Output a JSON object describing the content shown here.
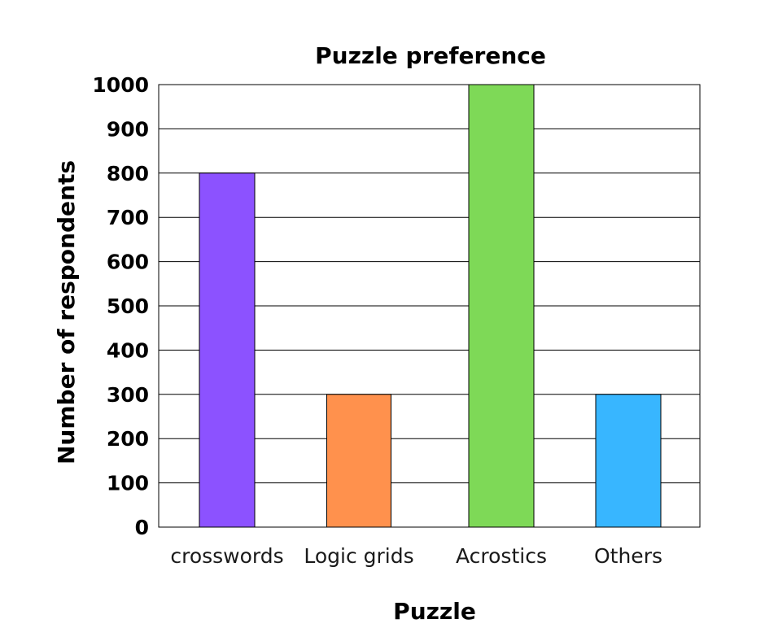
{
  "chart_data": {
    "type": "bar",
    "title": "Puzzle preference",
    "xlabel": "Puzzle",
    "ylabel": "Number of respondents",
    "categories": [
      "crosswords",
      "Logic grids",
      "Acrostics",
      "Others"
    ],
    "values": [
      800,
      300,
      1000,
      300
    ],
    "colors": [
      "#8c52ff",
      "#ff914d",
      "#7ed957",
      "#38b6ff"
    ],
    "ylim": [
      0,
      1000
    ],
    "yticks": [
      0,
      100,
      200,
      300,
      400,
      500,
      600,
      700,
      800,
      900,
      1000
    ],
    "grid": true,
    "legend": "none"
  }
}
